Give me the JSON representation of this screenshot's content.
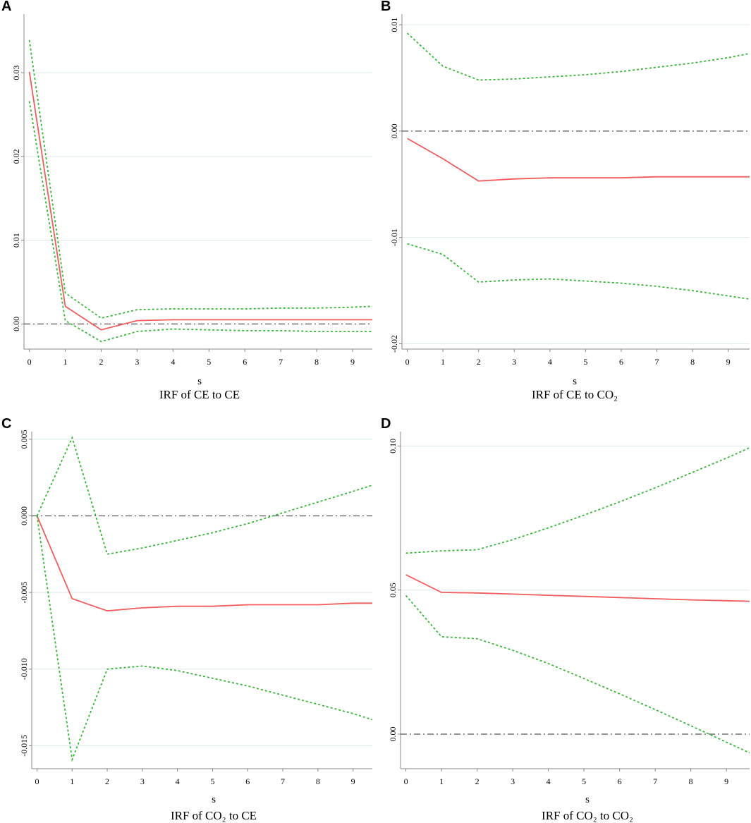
{
  "chart_data": [
    {
      "panel": "A",
      "type": "line",
      "title": "IRF of CE to CE",
      "xlabel": "s",
      "ylabel": "",
      "xlim": [
        -0.15,
        9.55
      ],
      "ylim": [
        -0.003,
        0.037
      ],
      "xticks": [
        0,
        1,
        2,
        3,
        4,
        5,
        6,
        7,
        8,
        9
      ],
      "yticks": [
        0,
        0.01,
        0.02,
        0.03
      ],
      "ytick_labels": [
        "0.00",
        "0.01",
        "0.02",
        "0.03"
      ],
      "zero_line": 0,
      "series": [
        {
          "name": "irf",
          "style": "solid",
          "color": "#f25c5c",
          "x": [
            0,
            1,
            2,
            3,
            4,
            5,
            6,
            7,
            8,
            9,
            9.55
          ],
          "values": [
            0.0301,
            0.0021,
            -0.0007,
            0.0004,
            0.0005,
            0.0005,
            0.0005,
            0.0005,
            0.0005,
            0.0005,
            0.0005
          ]
        },
        {
          "name": "upper",
          "style": "dotted",
          "color": "#33b833",
          "x": [
            0,
            1,
            2,
            3,
            4,
            5,
            6,
            7,
            8,
            9,
            9.55
          ],
          "values": [
            0.0339,
            0.0037,
            0.0007,
            0.0017,
            0.0018,
            0.0018,
            0.0018,
            0.0019,
            0.0019,
            0.002,
            0.0021
          ]
        },
        {
          "name": "lower",
          "style": "dotted",
          "color": "#33b833",
          "x": [
            0,
            1,
            2,
            3,
            4,
            5,
            6,
            7,
            8,
            9,
            9.55
          ],
          "values": [
            0.0266,
            0.0004,
            -0.0021,
            -0.0009,
            -0.0006,
            -0.0007,
            -0.0008,
            -0.0008,
            -0.0009,
            -0.0009,
            -0.0009
          ]
        }
      ]
    },
    {
      "panel": "B",
      "type": "line",
      "title": "IRF of CE to CO₂",
      "xlabel": "s",
      "ylabel": "",
      "xlim": [
        -0.15,
        9.6
      ],
      "ylim": [
        -0.0205,
        0.011
      ],
      "xticks": [
        0,
        1,
        2,
        3,
        4,
        5,
        6,
        7,
        8,
        9
      ],
      "yticks": [
        -0.02,
        -0.01,
        0,
        0.01
      ],
      "ytick_labels": [
        "-0.02",
        "-0.01",
        "0.00",
        "0.01"
      ],
      "zero_line": 0,
      "series": [
        {
          "name": "irf",
          "style": "solid",
          "color": "#f25c5c",
          "x": [
            0,
            1,
            2,
            3,
            4,
            5,
            6,
            7,
            8,
            9,
            9.6
          ],
          "values": [
            -0.0007,
            -0.0026,
            -0.0047,
            -0.0045,
            -0.0044,
            -0.0044,
            -0.0044,
            -0.0043,
            -0.0043,
            -0.0043,
            -0.0043
          ]
        },
        {
          "name": "upper",
          "style": "dotted",
          "color": "#33b833",
          "x": [
            0,
            1,
            2,
            3,
            4,
            5,
            6,
            7,
            8,
            9,
            9.6
          ],
          "values": [
            0.0092,
            0.0061,
            0.0048,
            0.0049,
            0.0051,
            0.0053,
            0.0056,
            0.006,
            0.0064,
            0.0069,
            0.0073
          ]
        },
        {
          "name": "lower",
          "style": "dotted",
          "color": "#33b833",
          "x": [
            0,
            1,
            2,
            3,
            4,
            5,
            6,
            7,
            8,
            9,
            9.6
          ],
          "values": [
            -0.0106,
            -0.0116,
            -0.0142,
            -0.014,
            -0.0139,
            -0.0141,
            -0.0143,
            -0.0146,
            -0.015,
            -0.0155,
            -0.0158
          ]
        }
      ]
    },
    {
      "panel": "C",
      "type": "line",
      "title": "IRF of CO₂ to CE",
      "xlabel": "s",
      "ylabel": "",
      "xlim": [
        -0.15,
        9.55
      ],
      "ylim": [
        -0.0165,
        0.0055
      ],
      "xticks": [
        0,
        1,
        2,
        3,
        4,
        5,
        6,
        7,
        8,
        9
      ],
      "yticks": [
        -0.015,
        -0.01,
        -0.005,
        0,
        0.005
      ],
      "ytick_labels": [
        "-0.015",
        "-0.010",
        "-0.005",
        "0.000",
        "0.005"
      ],
      "zero_line": 0,
      "series": [
        {
          "name": "irf",
          "style": "solid",
          "color": "#f25c5c",
          "x": [
            0,
            1,
            2,
            3,
            4,
            5,
            6,
            7,
            8,
            9,
            9.55
          ],
          "values": [
            0.0,
            -0.0054,
            -0.0062,
            -0.006,
            -0.0059,
            -0.0059,
            -0.0058,
            -0.0058,
            -0.0058,
            -0.0057,
            -0.0057
          ]
        },
        {
          "name": "upper",
          "style": "dotted",
          "color": "#33b833",
          "x": [
            0,
            1,
            2,
            3,
            4,
            5,
            6,
            7,
            8,
            9,
            9.55
          ],
          "values": [
            0.0,
            0.0051,
            -0.0025,
            -0.0021,
            -0.0016,
            -0.0011,
            -0.0005,
            0.0002,
            0.0009,
            0.0016,
            0.002
          ]
        },
        {
          "name": "lower",
          "style": "dotted",
          "color": "#33b833",
          "x": [
            0,
            1,
            2,
            3,
            4,
            5,
            6,
            7,
            8,
            9,
            9.55
          ],
          "values": [
            0.0,
            -0.0159,
            -0.01,
            -0.0098,
            -0.0101,
            -0.0106,
            -0.0111,
            -0.0117,
            -0.0123,
            -0.0129,
            -0.0133
          ]
        }
      ]
    },
    {
      "panel": "D",
      "type": "line",
      "title": "IRF of CO₂ to CO₂",
      "xlabel": "s",
      "ylabel": "",
      "xlim": [
        -0.15,
        9.65
      ],
      "ylim": [
        -0.012,
        0.105
      ],
      "xticks": [
        0,
        1,
        2,
        3,
        4,
        5,
        6,
        7,
        8,
        9
      ],
      "yticks": [
        0,
        0.05,
        0.1
      ],
      "ytick_labels": [
        "0.00",
        "0.05",
        "0.10"
      ],
      "zero_line": 0,
      "series": [
        {
          "name": "irf",
          "style": "solid",
          "color": "#f25c5c",
          "x": [
            0,
            1,
            2,
            3,
            4,
            5,
            6,
            7,
            8,
            9,
            9.65
          ],
          "values": [
            0.0553,
            0.0492,
            0.049,
            0.0486,
            0.0482,
            0.0478,
            0.0474,
            0.047,
            0.0466,
            0.0463,
            0.0461
          ]
        },
        {
          "name": "upper",
          "style": "dotted",
          "color": "#33b833",
          "x": [
            0,
            1,
            2,
            3,
            4,
            5,
            6,
            7,
            8,
            9,
            9.65
          ],
          "values": [
            0.0628,
            0.0636,
            0.064,
            0.0675,
            0.0716,
            0.076,
            0.0806,
            0.0855,
            0.0906,
            0.0958,
            0.0994
          ]
        },
        {
          "name": "lower",
          "style": "dotted",
          "color": "#33b833",
          "x": [
            0,
            1,
            2,
            3,
            4,
            5,
            6,
            7,
            8,
            9,
            9.65
          ],
          "values": [
            0.0481,
            0.0338,
            0.0331,
            0.0291,
            0.0245,
            0.0193,
            0.014,
            0.0085,
            0.0029,
            -0.0028,
            -0.0065
          ]
        }
      ]
    }
  ]
}
